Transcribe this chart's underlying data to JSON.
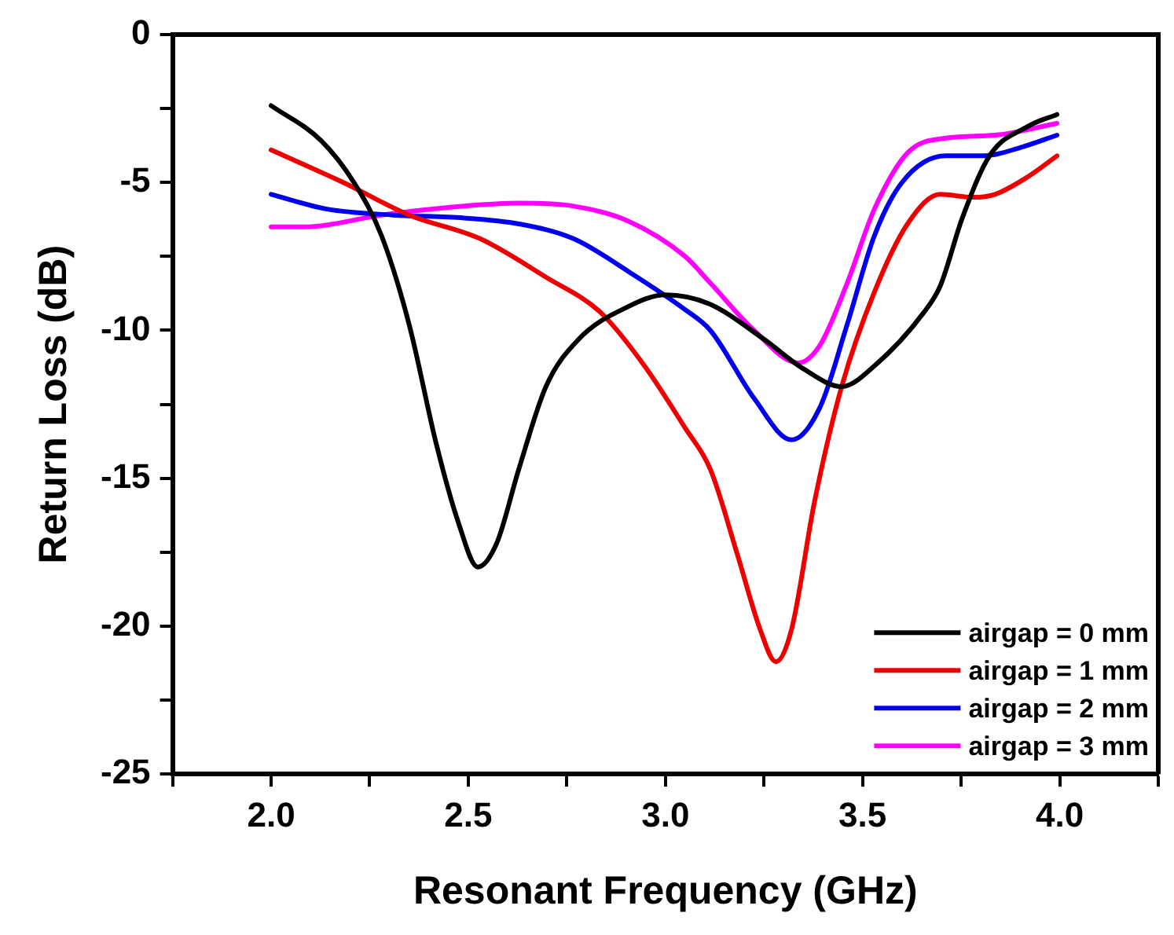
{
  "chart_data": {
    "type": "line",
    "xlabel": "Resonant Frequency (GHz)",
    "ylabel": "Return Loss (dB)",
    "xlim": [
      1.75,
      4.25
    ],
    "xticks": [
      {
        "value": 1.75,
        "label": null
      },
      {
        "value": 2,
        "label": "2.0"
      },
      {
        "value": 2.25,
        "label": null
      },
      {
        "value": 2.5,
        "label": "2.5"
      },
      {
        "value": 2.75,
        "label": null
      },
      {
        "value": 3,
        "label": "3.0"
      },
      {
        "value": 3.25,
        "label": null
      },
      {
        "value": 3.5,
        "label": "3.5"
      },
      {
        "value": 3.75,
        "label": null
      },
      {
        "value": 4,
        "label": "4.0"
      },
      {
        "value": 4.25,
        "label": null
      }
    ],
    "ylim": [
      -25,
      0
    ],
    "yticks": [
      -25,
      {
        "value": -22.5,
        "label": null
      },
      -20,
      {
        "value": -17.5,
        "label": null
      },
      -15,
      {
        "value": -12.5,
        "label": null
      },
      -10,
      {
        "value": -7.5,
        "label": null
      },
      -5,
      {
        "value": -2.5,
        "label": null
      },
      0
    ],
    "grid": false,
    "legend": "bottom right",
    "marker": "none",
    "line_style": "solid",
    "series": [
      {
        "name": "airgap = 0 mm",
        "color": "#000000",
        "x": [
          2.0,
          2.128,
          2.21,
          2.28,
          2.35,
          2.42,
          2.475,
          2.524,
          2.572,
          2.628,
          2.697,
          2.78,
          2.905,
          3.0,
          3.11,
          3.25,
          3.35,
          3.447,
          3.53,
          3.655,
          3.697,
          3.753,
          3.822,
          3.92,
          3.993
        ],
        "values": [
          -2.4,
          -3.6,
          -5.0,
          -6.8,
          -9.8,
          -13.9,
          -16.5,
          -18.0,
          -17.2,
          -14.7,
          -11.9,
          -10.3,
          -9.2,
          -8.8,
          -9.1,
          -10.3,
          -11.3,
          -11.9,
          -11.2,
          -9.4,
          -8.5,
          -6.2,
          -4.1,
          -3.1,
          -2.7
        ]
      },
      {
        "name": "airgap = 1 mm",
        "color": "#ee0000",
        "x": [
          2.0,
          2.183,
          2.35,
          2.53,
          2.697,
          2.836,
          2.947,
          3.05,
          3.114,
          3.183,
          3.24,
          3.28,
          3.32,
          3.378,
          3.447,
          3.53,
          3.614,
          3.697,
          3.78,
          3.836,
          3.92,
          3.993
        ],
        "values": [
          -3.9,
          -5.0,
          -6.1,
          -6.9,
          -8.2,
          -9.4,
          -11.2,
          -13.3,
          -14.7,
          -17.6,
          -20.1,
          -21.2,
          -20.1,
          -15.8,
          -11.9,
          -8.7,
          -6.4,
          -5.4,
          -5.5,
          -5.4,
          -4.8,
          -4.1
        ]
      },
      {
        "name": "airgap = 2 mm",
        "color": "#0000ee",
        "x": [
          2.0,
          2.142,
          2.308,
          2.489,
          2.628,
          2.767,
          2.905,
          3.05,
          3.114,
          3.225,
          3.32,
          3.392,
          3.461,
          3.53,
          3.6,
          3.711,
          3.808,
          3.905,
          3.993
        ],
        "values": [
          -5.4,
          -5.9,
          -6.1,
          -6.2,
          -6.4,
          -6.9,
          -8.0,
          -9.3,
          -10.0,
          -12.3,
          -13.7,
          -12.6,
          -9.8,
          -6.8,
          -5.0,
          -4.1,
          -4.1,
          -3.8,
          -3.4
        ]
      },
      {
        "name": "airgap = 3 mm",
        "color": "#ff00ff",
        "x": [
          2.0,
          2.086,
          2.28,
          2.489,
          2.628,
          2.767,
          2.905,
          3.05,
          3.114,
          3.225,
          3.336,
          3.392,
          3.461,
          3.53,
          3.614,
          3.711,
          3.836,
          3.993
        ],
        "values": [
          -6.5,
          -6.5,
          -6.1,
          -5.8,
          -5.7,
          -5.8,
          -6.3,
          -7.5,
          -8.4,
          -10.0,
          -11.1,
          -10.5,
          -8.4,
          -5.9,
          -4.0,
          -3.5,
          -3.4,
          -3.0
        ]
      }
    ]
  }
}
